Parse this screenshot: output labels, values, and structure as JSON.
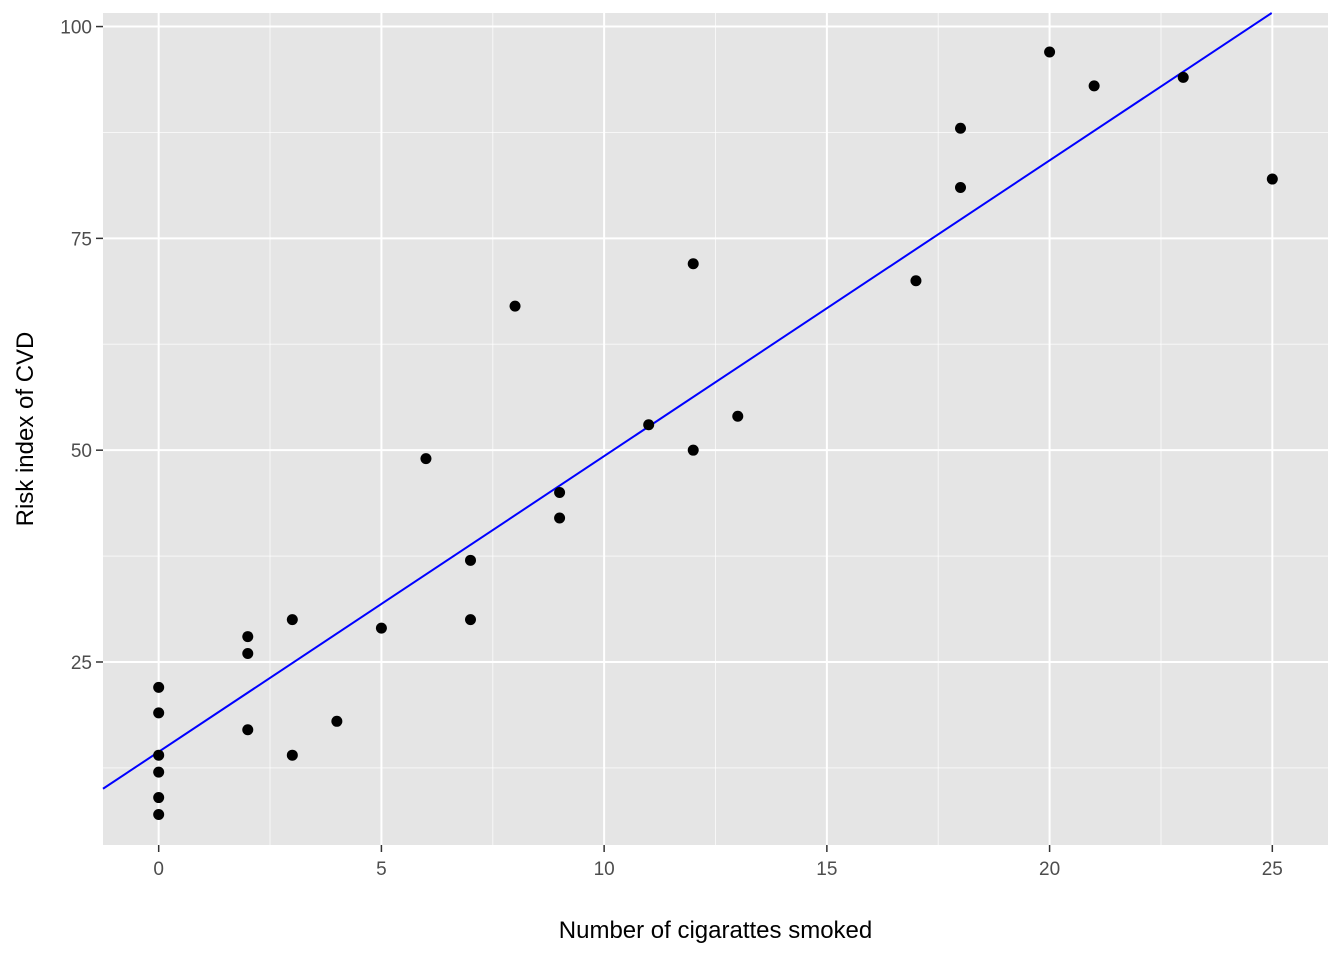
{
  "chart_data": {
    "type": "scatter",
    "title": "",
    "xlabel": "Number of cigarattes smoked",
    "ylabel": "Risk index of CVD",
    "xlim": [
      -1.25,
      26.25
    ],
    "ylim": [
      3.4,
      101.6
    ],
    "x_ticks": [
      0,
      5,
      10,
      15,
      20,
      25
    ],
    "y_ticks": [
      25,
      50,
      75,
      100
    ],
    "x_tick_labels": [
      "0",
      "5",
      "10",
      "15",
      "20",
      "25"
    ],
    "y_tick_labels": [
      "25",
      "50",
      "75",
      "100"
    ],
    "grid": true,
    "background": "#e5e5e5",
    "grid_color": "#ffffff",
    "point_color": "#000000",
    "fit_line": {
      "intercept": 14.4,
      "slope": 3.49,
      "color": "#0000ff"
    },
    "points": [
      {
        "x": 0,
        "y": 22
      },
      {
        "x": 0,
        "y": 19
      },
      {
        "x": 0,
        "y": 14
      },
      {
        "x": 0,
        "y": 12
      },
      {
        "x": 0,
        "y": 9
      },
      {
        "x": 0,
        "y": 7
      },
      {
        "x": 2,
        "y": 28
      },
      {
        "x": 2,
        "y": 26
      },
      {
        "x": 2,
        "y": 17
      },
      {
        "x": 3,
        "y": 30
      },
      {
        "x": 3,
        "y": 14
      },
      {
        "x": 4,
        "y": 18
      },
      {
        "x": 5,
        "y": 29
      },
      {
        "x": 6,
        "y": 49
      },
      {
        "x": 7,
        "y": 37
      },
      {
        "x": 7,
        "y": 30
      },
      {
        "x": 8,
        "y": 67
      },
      {
        "x": 9,
        "y": 45
      },
      {
        "x": 9,
        "y": 42
      },
      {
        "x": 11,
        "y": 53
      },
      {
        "x": 12,
        "y": 72
      },
      {
        "x": 12,
        "y": 50
      },
      {
        "x": 13,
        "y": 54
      },
      {
        "x": 17,
        "y": 70
      },
      {
        "x": 18,
        "y": 88
      },
      {
        "x": 18,
        "y": 81
      },
      {
        "x": 20,
        "y": 97
      },
      {
        "x": 21,
        "y": 93
      },
      {
        "x": 23,
        "y": 94
      },
      {
        "x": 25,
        "y": 82
      }
    ]
  }
}
